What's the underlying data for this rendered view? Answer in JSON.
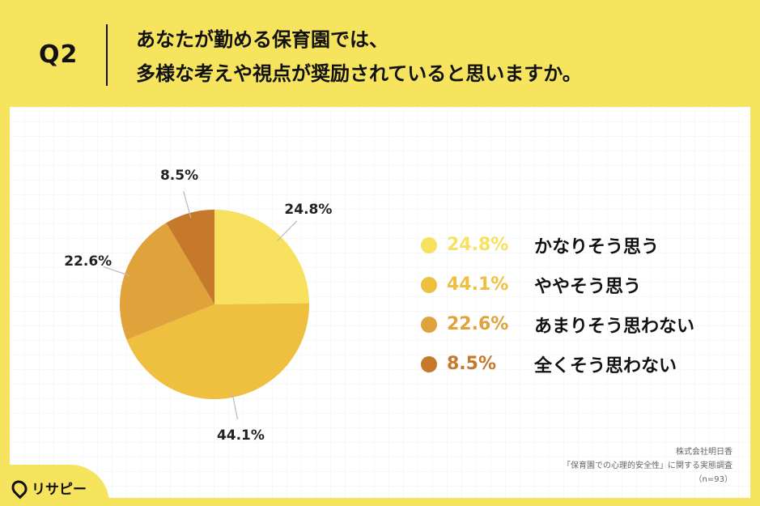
{
  "header": {
    "q_label": "Q2",
    "question_line1": "あなたが勤める保育園では、",
    "question_line2": "多様な考えや視点が奨励されていると思いますか。"
  },
  "chart_data": {
    "type": "pie",
    "categories": [
      "かなりそう思う",
      "ややそう思う",
      "あまりそう思わない",
      "全くそう思わない"
    ],
    "values": [
      24.8,
      44.1,
      22.6,
      8.5
    ],
    "value_labels": [
      "24.8%",
      "44.1%",
      "22.6%",
      "8.5%"
    ],
    "colors": [
      "#f7e15f",
      "#efbf3f",
      "#e0a23a",
      "#c6782b"
    ],
    "legend_position": "right"
  },
  "source": {
    "line1": "株式会社明日香",
    "line2": "「保育園での心理的安全性」に関する実態調査",
    "line3": "（n=93）"
  },
  "logo": {
    "text": "リサピー",
    "icon": "location-pin-icon"
  }
}
